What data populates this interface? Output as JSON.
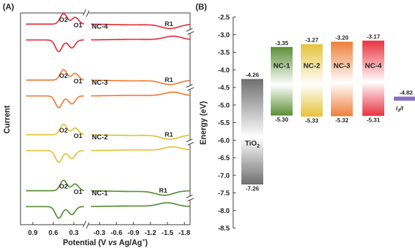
{
  "panel_a": {
    "label": "(A)",
    "ylabel": "Current",
    "xlabel_prefix": "Potential (V ",
    "xlabel_vs": "vs",
    "xlabel_suffix": " Ag/Ag",
    "xlabel_sup": "+",
    "xlabel_close": ")",
    "ticks_left": [
      "0.9",
      "0.6",
      "0.3"
    ],
    "ticks_right": [
      "-0.3",
      "-0.6",
      "-0.9",
      "-1.2",
      "-1.5",
      "-1.8"
    ],
    "peak_labels": {
      "o2": "O2",
      "o1": "O1",
      "r1": "R1"
    }
  },
  "panel_b": {
    "label": "(B)",
    "ylabel": "Energy (eV)",
    "yticks": [
      "-2.5",
      "-3.0",
      "-3.5",
      "-4.0",
      "-4.5",
      "-5.0",
      "-5.5",
      "-6.0",
      "-6.5",
      "-7.0",
      "-7.5",
      "-8.0",
      "-8.5"
    ],
    "electrolyte_text": "I3/I",
    "electrolyte_value_text": "-4.82"
  },
  "chart_data": [
    {
      "type": "line",
      "panel": "A",
      "xlabel": "Potential (V vs Ag/Ag+)",
      "ylabel": "Current",
      "x_axis_reversed": true,
      "x_axis_break": [
        0.15,
        -0.15
      ],
      "x_ticks": [
        0.9,
        0.6,
        0.3,
        -0.3,
        -0.6,
        -0.9,
        -1.2,
        -1.5,
        -1.8
      ],
      "series": [
        {
          "name": "NC-4",
          "color": "#e8323f",
          "peaks": {
            "O2": 0.45,
            "O1": 0.28,
            "R1": -1.55
          }
        },
        {
          "name": "NC-3",
          "color": "#ee7f3a",
          "peaks": {
            "O2": 0.45,
            "O1": 0.28,
            "R1": -1.55
          }
        },
        {
          "name": "NC-2",
          "color": "#e6c23a",
          "peaks": {
            "O2": 0.45,
            "O1": 0.28,
            "R1": -1.55
          }
        },
        {
          "name": "NC-1",
          "color": "#5b8f35",
          "peaks": {
            "O2": 0.45,
            "O1": 0.28,
            "R1": -1.45
          }
        }
      ]
    },
    {
      "type": "bar",
      "panel": "B",
      "ylabel": "Energy (eV)",
      "ylim": [
        -8.5,
        -2.5
      ],
      "categories": [
        "TiO2",
        "NC-1",
        "NC-2",
        "NC-3",
        "NC-4"
      ],
      "top": [
        -4.26,
        -3.35,
        -3.27,
        -3.2,
        -3.17
      ],
      "bottom": [
        -7.26,
        -5.3,
        -5.33,
        -5.32,
        -5.31
      ],
      "top_labels": [
        "-4.26",
        "-3.35",
        "-3.27",
        "-3.20",
        "-3.17"
      ],
      "bottom_labels": [
        "-7.26",
        "-5.30",
        "-5.33",
        "-5.32",
        "-5.31"
      ],
      "colors": [
        "#6f6f6f",
        "#5b8f35",
        "#e6c23a",
        "#ee7f3a",
        "#e8323f"
      ],
      "electrolyte": {
        "name": "I3-/I-",
        "level": -4.82,
        "color": "#8a6fc4"
      }
    }
  ]
}
